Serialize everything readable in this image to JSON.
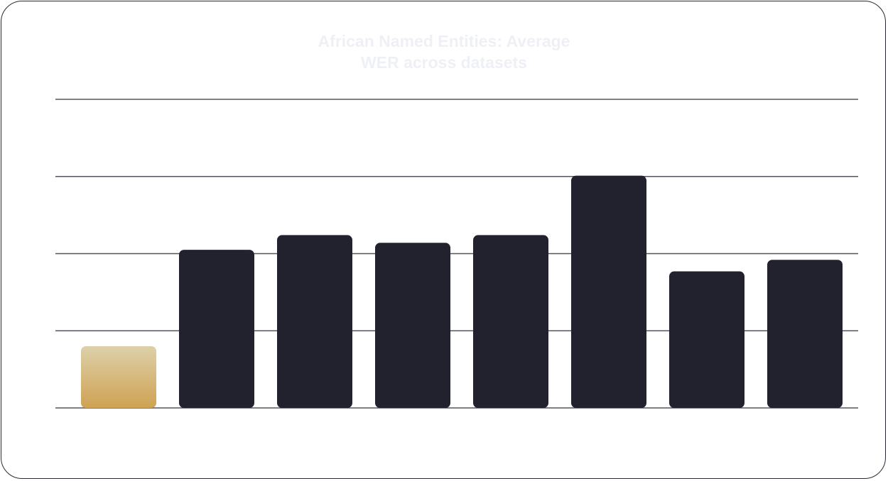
{
  "chart_data": {
    "type": "bar",
    "title_line1": "African Named Entities: Average",
    "title_line2": "WER across datasets",
    "categories": [
      "",
      "",
      "",
      "",
      "",
      "",
      "",
      ""
    ],
    "values": [
      8.0,
      20.5,
      22.4,
      21.4,
      22.4,
      30.1,
      17.7,
      19.2
    ],
    "ylim": [
      0,
      40
    ],
    "grid": true,
    "highlight_index": 0,
    "colors": {
      "bar": "#22222e",
      "highlight_top": "#ddd0aa",
      "highlight_bottom": "#cfa253",
      "grid": "#55555f",
      "title": "#eef0f6"
    }
  }
}
